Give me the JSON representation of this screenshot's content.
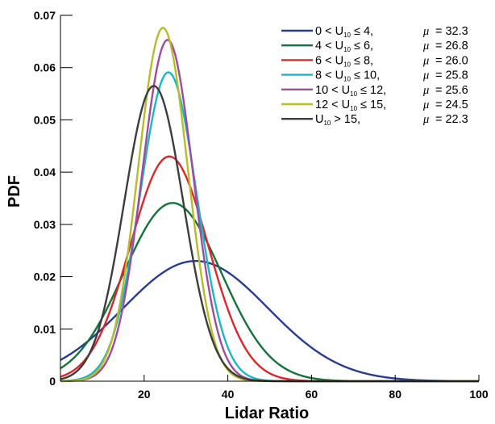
{
  "chart_data": {
    "type": "line",
    "title": "",
    "xlabel": "Lidar Ratio",
    "ylabel": "PDF",
    "xlim": [
      0,
      100
    ],
    "ylim": [
      0,
      0.07
    ],
    "xticks": [
      20,
      40,
      60,
      80,
      100
    ],
    "xtick_labels": [
      "20",
      "40",
      "60",
      "80",
      "100"
    ],
    "yticks": [
      0,
      0.01,
      0.02,
      0.03,
      0.04,
      0.05,
      0.06,
      0.07
    ],
    "ytick_labels": [
      "0",
      "0.01",
      "0.02",
      "0.03",
      "0.04",
      "0.05",
      "0.06",
      "0.07"
    ],
    "grid": false,
    "legend_position": "top-right",
    "series": [
      {
        "name": "0 < U10 ≤ 4,",
        "range_label": "0 < U",
        "range_tail": "≤ 4,",
        "mu_label": "= 32.3",
        "mean": 32.3,
        "peak": 0.023,
        "color": "#283c92"
      },
      {
        "name": "4 < U10 ≤ 6,",
        "range_label": "4 < U",
        "range_tail": "≤ 6,",
        "mu_label": "= 26.8",
        "mean": 26.8,
        "peak": 0.0341,
        "color": "#13743a"
      },
      {
        "name": "6 < U10 ≤ 8,",
        "range_label": "6 < U",
        "range_tail": "≤ 8,",
        "mu_label": "= 26.0",
        "mean": 26.0,
        "peak": 0.043,
        "color": "#e1242a"
      },
      {
        "name": "8 < U10 ≤ 10,",
        "range_label": "8 < U",
        "range_tail": "≤ 10,",
        "mu_label": "= 25.8",
        "mean": 25.8,
        "peak": 0.0591,
        "color": "#1ab8c4"
      },
      {
        "name": "10 < U10 ≤ 12,",
        "range_label": "10 < U",
        "range_tail": "≤ 12,",
        "mu_label": "= 25.6",
        "mean": 25.6,
        "peak": 0.0653,
        "color": "#a04b9c"
      },
      {
        "name": "12 < U10 ≤ 15,",
        "range_label": "12 < U",
        "range_tail": "≤ 15,",
        "mu_label": "= 24.5",
        "mean": 24.5,
        "peak": 0.0676,
        "color": "#b8bc29"
      },
      {
        "name": "U10 > 15,",
        "range_label": "U",
        "range_tail": "> 15,",
        "mu_label": "= 22.3",
        "mean": 22.3,
        "peak": 0.0565,
        "color": "#3d3d3d"
      }
    ],
    "legend_subscript": "10",
    "legend_mu_symbol": "μ"
  }
}
